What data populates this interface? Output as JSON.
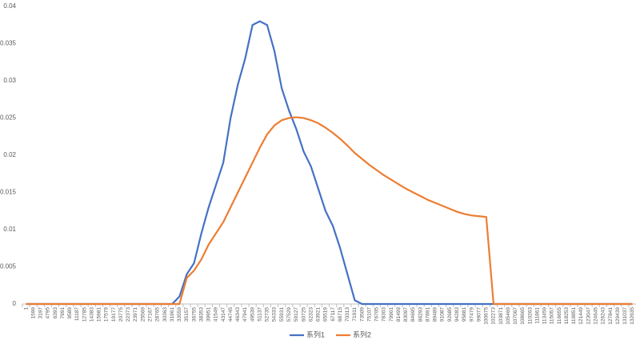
{
  "chart_data": {
    "type": "line",
    "categories": [
      1,
      1599,
      3197,
      4795,
      6393,
      7991,
      9589,
      11187,
      12785,
      14383,
      15981,
      17579,
      19177,
      20775,
      22373,
      23971,
      25569,
      27167,
      28765,
      30363,
      31961,
      33559,
      35157,
      36755,
      38353,
      39951,
      41549,
      43147,
      44745,
      46343,
      47941,
      49539,
      51137,
      52735,
      54333,
      55931,
      57529,
      59127,
      60725,
      62323,
      63921,
      65519,
      67117,
      68715,
      70313,
      71911,
      73509,
      75107,
      76705,
      78303,
      79901,
      81499,
      83097,
      84695,
      86293,
      87891,
      89489,
      91087,
      92685,
      94283,
      95881,
      97479,
      99077,
      100675,
      102273,
      103871,
      105469,
      107067,
      108665,
      110263,
      111861,
      113459,
      115057,
      116655,
      118253,
      119851,
      121449,
      123047,
      124645,
      126243,
      127841,
      129439,
      131037,
      132635
    ],
    "series": [
      {
        "name": "系列1",
        "color": "#4472c4",
        "values": [
          0,
          0,
          0,
          0,
          0,
          0,
          0,
          0,
          0,
          0,
          0,
          0,
          0,
          0,
          0,
          0,
          0,
          0,
          0,
          0,
          0,
          0.001,
          0.004,
          0.0055,
          0.0095,
          0.013,
          0.016,
          0.019,
          0.025,
          0.0295,
          0.033,
          0.0375,
          0.038,
          0.0375,
          0.034,
          0.029,
          0.026,
          0.0235,
          0.0205,
          0.0185,
          0.0155,
          0.0125,
          0.0105,
          0.0075,
          0.004,
          0.0005,
          0,
          0,
          0,
          0,
          0,
          0,
          0,
          0,
          0,
          0,
          0,
          0,
          0,
          0,
          0,
          0,
          0,
          0,
          0,
          0,
          0,
          0,
          0,
          0,
          0,
          0,
          0,
          0,
          0,
          0,
          0,
          0,
          0,
          0,
          0,
          0,
          0,
          0
        ]
      },
      {
        "name": "系列2",
        "color": "#ed7d31",
        "values": [
          0,
          0,
          0,
          0,
          0,
          0,
          0,
          0,
          0,
          0,
          0,
          0,
          0,
          0,
          0,
          0,
          0,
          0,
          0,
          0,
          0,
          0,
          0.0035,
          0.0045,
          0.006,
          0.008,
          0.0095,
          0.011,
          0.013,
          0.015,
          0.017,
          0.019,
          0.021,
          0.0228,
          0.024,
          0.0247,
          0.025,
          0.0251,
          0.025,
          0.0247,
          0.0243,
          0.0237,
          0.023,
          0.0222,
          0.0213,
          0.0203,
          0.0195,
          0.0187,
          0.018,
          0.0173,
          0.0167,
          0.0161,
          0.0155,
          0.015,
          0.0145,
          0.014,
          0.0136,
          0.0132,
          0.0128,
          0.0124,
          0.0121,
          0.0119,
          0.0118,
          0.0117,
          0,
          0,
          0,
          0,
          0,
          0,
          0,
          0,
          0,
          0,
          0,
          0,
          0,
          0,
          0,
          0,
          0,
          0,
          0,
          0
        ]
      }
    ],
    "ylim": [
      0,
      0.04
    ],
    "yticks": [
      0,
      0.005,
      0.01,
      0.015,
      0.02,
      0.025,
      0.03,
      0.035,
      0.04
    ],
    "grid": false,
    "legend": "bottom"
  }
}
